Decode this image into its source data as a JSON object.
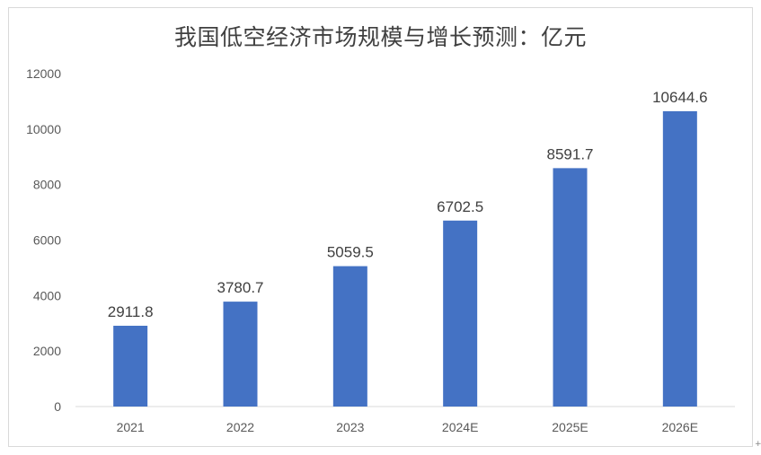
{
  "chart_data": {
    "type": "bar",
    "title": "我国低空经济市场规模与增长预测：亿元",
    "categories": [
      "2021",
      "2022",
      "2023",
      "2024E",
      "2025E",
      "2026E"
    ],
    "values": [
      2911.8,
      3780.7,
      5059.5,
      6702.5,
      8591.7,
      10644.6
    ],
    "data_labels": [
      "2911.8",
      "3780.7",
      "5059.5",
      "6702.5",
      "8591.7",
      "10644.6"
    ],
    "ylim": [
      0,
      12000
    ],
    "yticks": [
      0,
      2000,
      4000,
      6000,
      8000,
      10000,
      12000
    ],
    "xlabel": "",
    "ylabel": "",
    "grid": false,
    "legend": "none",
    "bar_color": "#4472c4",
    "axis_color": "#d9d9d9"
  },
  "corner_mark": "+"
}
